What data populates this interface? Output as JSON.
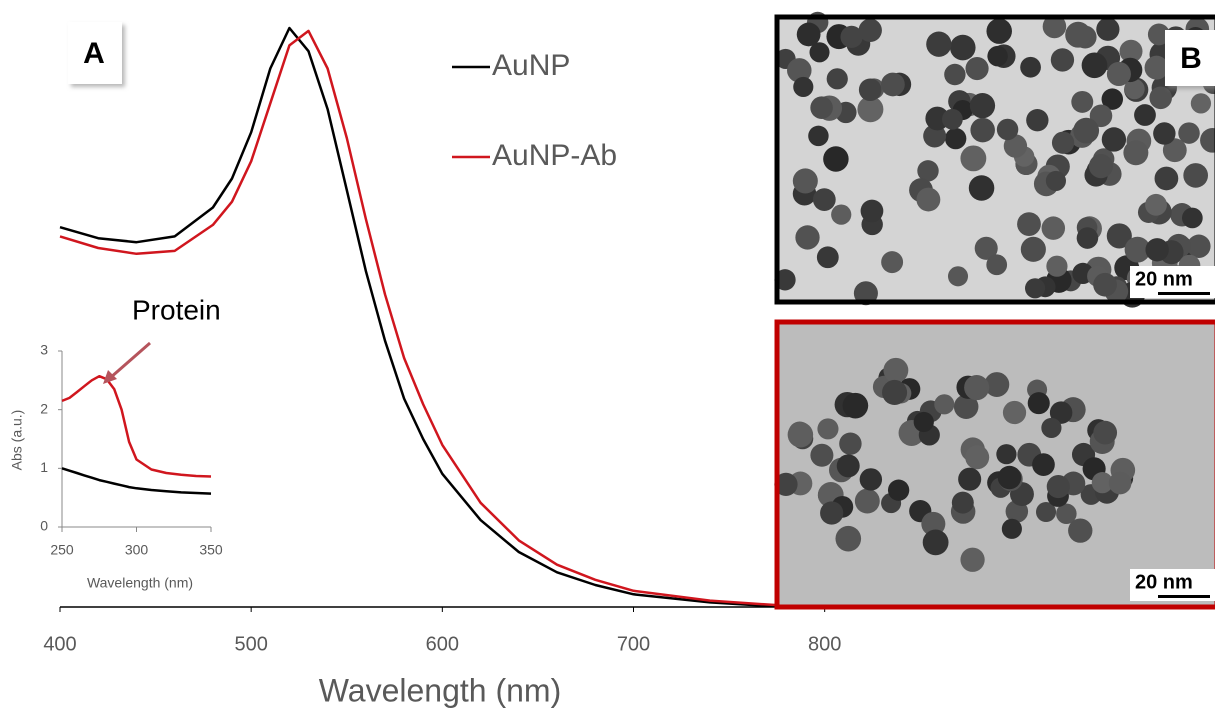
{
  "chart_data": [
    {
      "type": "line",
      "x_label": "Wavelength (nm)",
      "x": [
        400,
        420,
        440,
        460,
        480,
        490,
        500,
        510,
        520,
        530,
        540,
        550,
        560,
        570,
        580,
        590,
        600,
        620,
        640,
        660,
        680,
        700,
        740,
        780
      ],
      "xlim": [
        400,
        1000
      ],
      "xticks": [
        400,
        500,
        600,
        700,
        800
      ],
      "ylim": [
        0,
        1
      ],
      "series": [
        {
          "name": "AuNP",
          "color": "#000000",
          "values": [
            0.656,
            0.637,
            0.63,
            0.64,
            0.69,
            0.74,
            0.82,
            0.93,
            1.0,
            0.96,
            0.86,
            0.72,
            0.58,
            0.46,
            0.36,
            0.29,
            0.23,
            0.15,
            0.095,
            0.06,
            0.038,
            0.022,
            0.008,
            0
          ]
        },
        {
          "name": "AuNP-Ab",
          "color": "#d0161e",
          "values": [
            0.64,
            0.62,
            0.61,
            0.615,
            0.66,
            0.7,
            0.77,
            0.87,
            0.97,
            0.995,
            0.93,
            0.81,
            0.67,
            0.54,
            0.43,
            0.35,
            0.28,
            0.18,
            0.115,
            0.073,
            0.047,
            0.028,
            0.011,
            0.002
          ]
        }
      ]
    },
    {
      "type": "line",
      "annotation": "Protein",
      "x_label": "Wavelength (nm)",
      "y_label": "Abs (a.u.)",
      "x": [
        250,
        255,
        260,
        265,
        270,
        275,
        280,
        285,
        290,
        295,
        300,
        310,
        320,
        330,
        340,
        350
      ],
      "xlim": [
        250,
        350
      ],
      "xticks": [
        250,
        300,
        350
      ],
      "ylim": [
        0,
        3
      ],
      "yticks": [
        0,
        1,
        2,
        3
      ],
      "series": [
        {
          "color": "#000000",
          "values": [
            1.0,
            0.96,
            0.92,
            0.88,
            0.84,
            0.8,
            0.77,
            0.74,
            0.71,
            0.68,
            0.66,
            0.63,
            0.61,
            0.59,
            0.58,
            0.57
          ]
        },
        {
          "color": "#d0161e",
          "values": [
            2.15,
            2.2,
            2.3,
            2.4,
            2.5,
            2.57,
            2.52,
            2.35,
            2.0,
            1.45,
            1.15,
            0.98,
            0.92,
            0.89,
            0.87,
            0.86
          ]
        }
      ]
    }
  ],
  "panels": {
    "labels": [
      "A",
      "B"
    ],
    "scale_bars": [
      "20 nm",
      "20 nm"
    ]
  }
}
